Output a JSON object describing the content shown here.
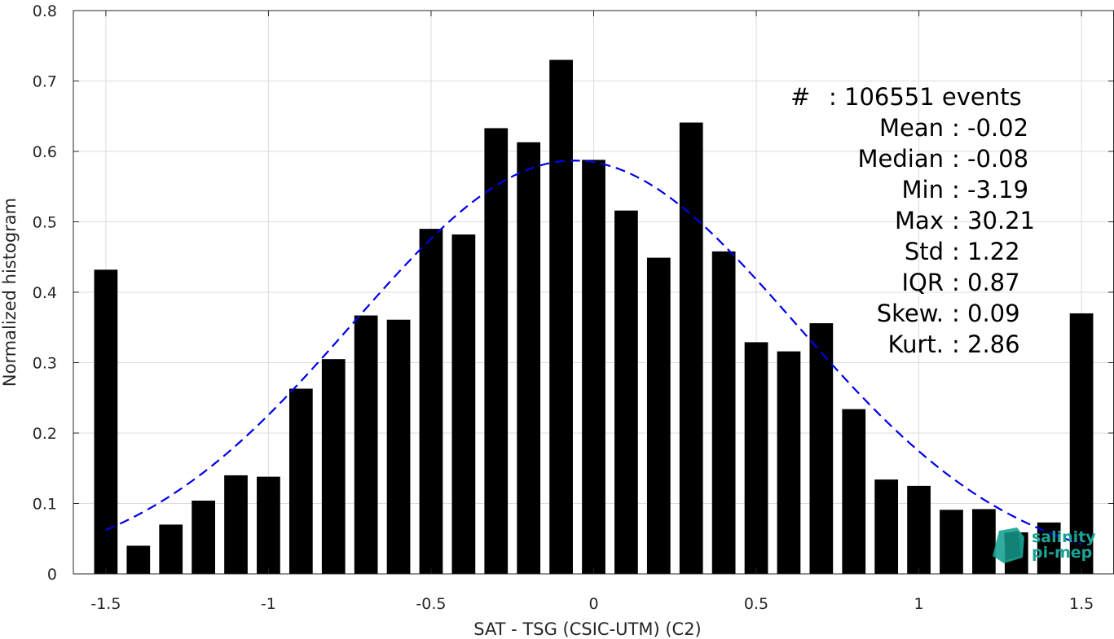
{
  "chart_data": {
    "type": "bar",
    "xlabel": "SAT - TSG (CSIC-UTM) (C2)",
    "ylabel": "Normalized histogram",
    "xlim": [
      -1.6,
      1.6
    ],
    "ylim": [
      0,
      0.8
    ],
    "xticks": [
      -1.5,
      -1,
      -0.5,
      0,
      0.5,
      1,
      1.5
    ],
    "xtick_labels": [
      "-1.5",
      "-1",
      "-0.5",
      "0",
      "0.5",
      "1",
      "1.5"
    ],
    "yticks": [
      0,
      0.1,
      0.2,
      0.3,
      0.4,
      0.5,
      0.6,
      0.7,
      0.8
    ],
    "ytick_labels": [
      "0",
      "0.1",
      "0.2",
      "0.3",
      "0.4",
      "0.5",
      "0.6",
      "0.7",
      "0.8"
    ],
    "grid": true,
    "bar_color": "#000000",
    "bins": [
      -1.5,
      -1.4,
      -1.3,
      -1.2,
      -1.1,
      -1.0,
      -0.9,
      -0.8,
      -0.7,
      -0.6,
      -0.5,
      -0.4,
      -0.3,
      -0.2,
      -0.1,
      0.0,
      0.1,
      0.2,
      0.3,
      0.4,
      0.5,
      0.6,
      0.7,
      0.8,
      0.9,
      1.0,
      1.1,
      1.2,
      1.3,
      1.4,
      1.5
    ],
    "values": [
      0.432,
      0.04,
      0.07,
      0.104,
      0.14,
      0.138,
      0.263,
      0.305,
      0.367,
      0.361,
      0.49,
      0.482,
      0.633,
      0.613,
      0.73,
      0.588,
      0.516,
      0.449,
      0.641,
      0.458,
      0.329,
      0.316,
      0.356,
      0.234,
      0.134,
      0.125,
      0.091,
      0.092,
      0.059,
      0.073,
      0.37
    ],
    "fit": {
      "type": "normal",
      "style": "dashed",
      "color": "#0000e6",
      "mean": -0.06,
      "std": 0.68,
      "peak": 0.587,
      "x_range": [
        -1.5,
        1.5
      ]
    }
  },
  "stats": [
    {
      "label": "#",
      "value": "106551 events"
    },
    {
      "label": "Mean",
      "value": "-0.02"
    },
    {
      "label": "Median",
      "value": "-0.08"
    },
    {
      "label": "Min",
      "value": "-3.19"
    },
    {
      "label": "Max",
      "value": "30.21"
    },
    {
      "label": "Std",
      "value": "1.22"
    },
    {
      "label": "IQR",
      "value": "0.87"
    },
    {
      "label": "Skew.",
      "value": "0.09"
    },
    {
      "label": "Kurt.",
      "value": "2.86"
    }
  ],
  "logo": {
    "line1": "salinity",
    "line2": "pi-mep",
    "color": "#1aa394"
  }
}
